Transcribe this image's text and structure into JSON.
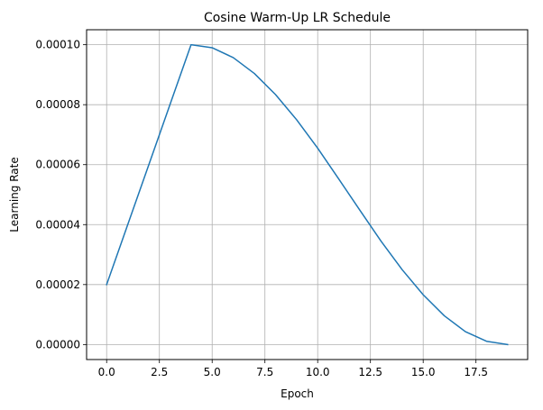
{
  "chart_data": {
    "type": "line",
    "title": "Cosine Warm-Up LR Schedule",
    "xlabel": "Epoch",
    "ylabel": "Learning Rate",
    "xlim": [
      -0.95,
      19.95
    ],
    "ylim": [
      -5e-06,
      0.000105
    ],
    "grid": true,
    "line_color": "#1f77b4",
    "grid_color": "#b0b0b0",
    "xticks": [
      0.0,
      2.5,
      5.0,
      7.5,
      10.0,
      12.5,
      15.0,
      17.5
    ],
    "xtick_labels": [
      "0.0",
      "2.5",
      "5.0",
      "7.5",
      "10.0",
      "12.5",
      "15.0",
      "17.5"
    ],
    "yticks": [
      0.0,
      2e-05,
      4e-05,
      6e-05,
      8e-05,
      0.0001
    ],
    "ytick_labels": [
      "0.00000",
      "0.00002",
      "0.00004",
      "0.00006",
      "0.00008",
      "0.00010"
    ],
    "series": [
      {
        "name": "Learning Rate",
        "x": [
          0,
          1,
          2,
          3,
          4,
          5,
          6,
          7,
          8,
          9,
          10,
          11,
          12,
          13,
          14,
          15,
          16,
          17,
          18,
          19
        ],
        "values": [
          2e-05,
          4e-05,
          6e-05,
          8e-05,
          0.0001,
          9.9e-05,
          9.57e-05,
          9.04e-05,
          8.34e-05,
          7.5e-05,
          6.55e-05,
          5.52e-05,
          4.48e-05,
          3.45e-05,
          2.5e-05,
          1.66e-05,
          9.6e-06,
          4.3e-06,
          1.1e-06,
          0.0
        ]
      }
    ]
  }
}
